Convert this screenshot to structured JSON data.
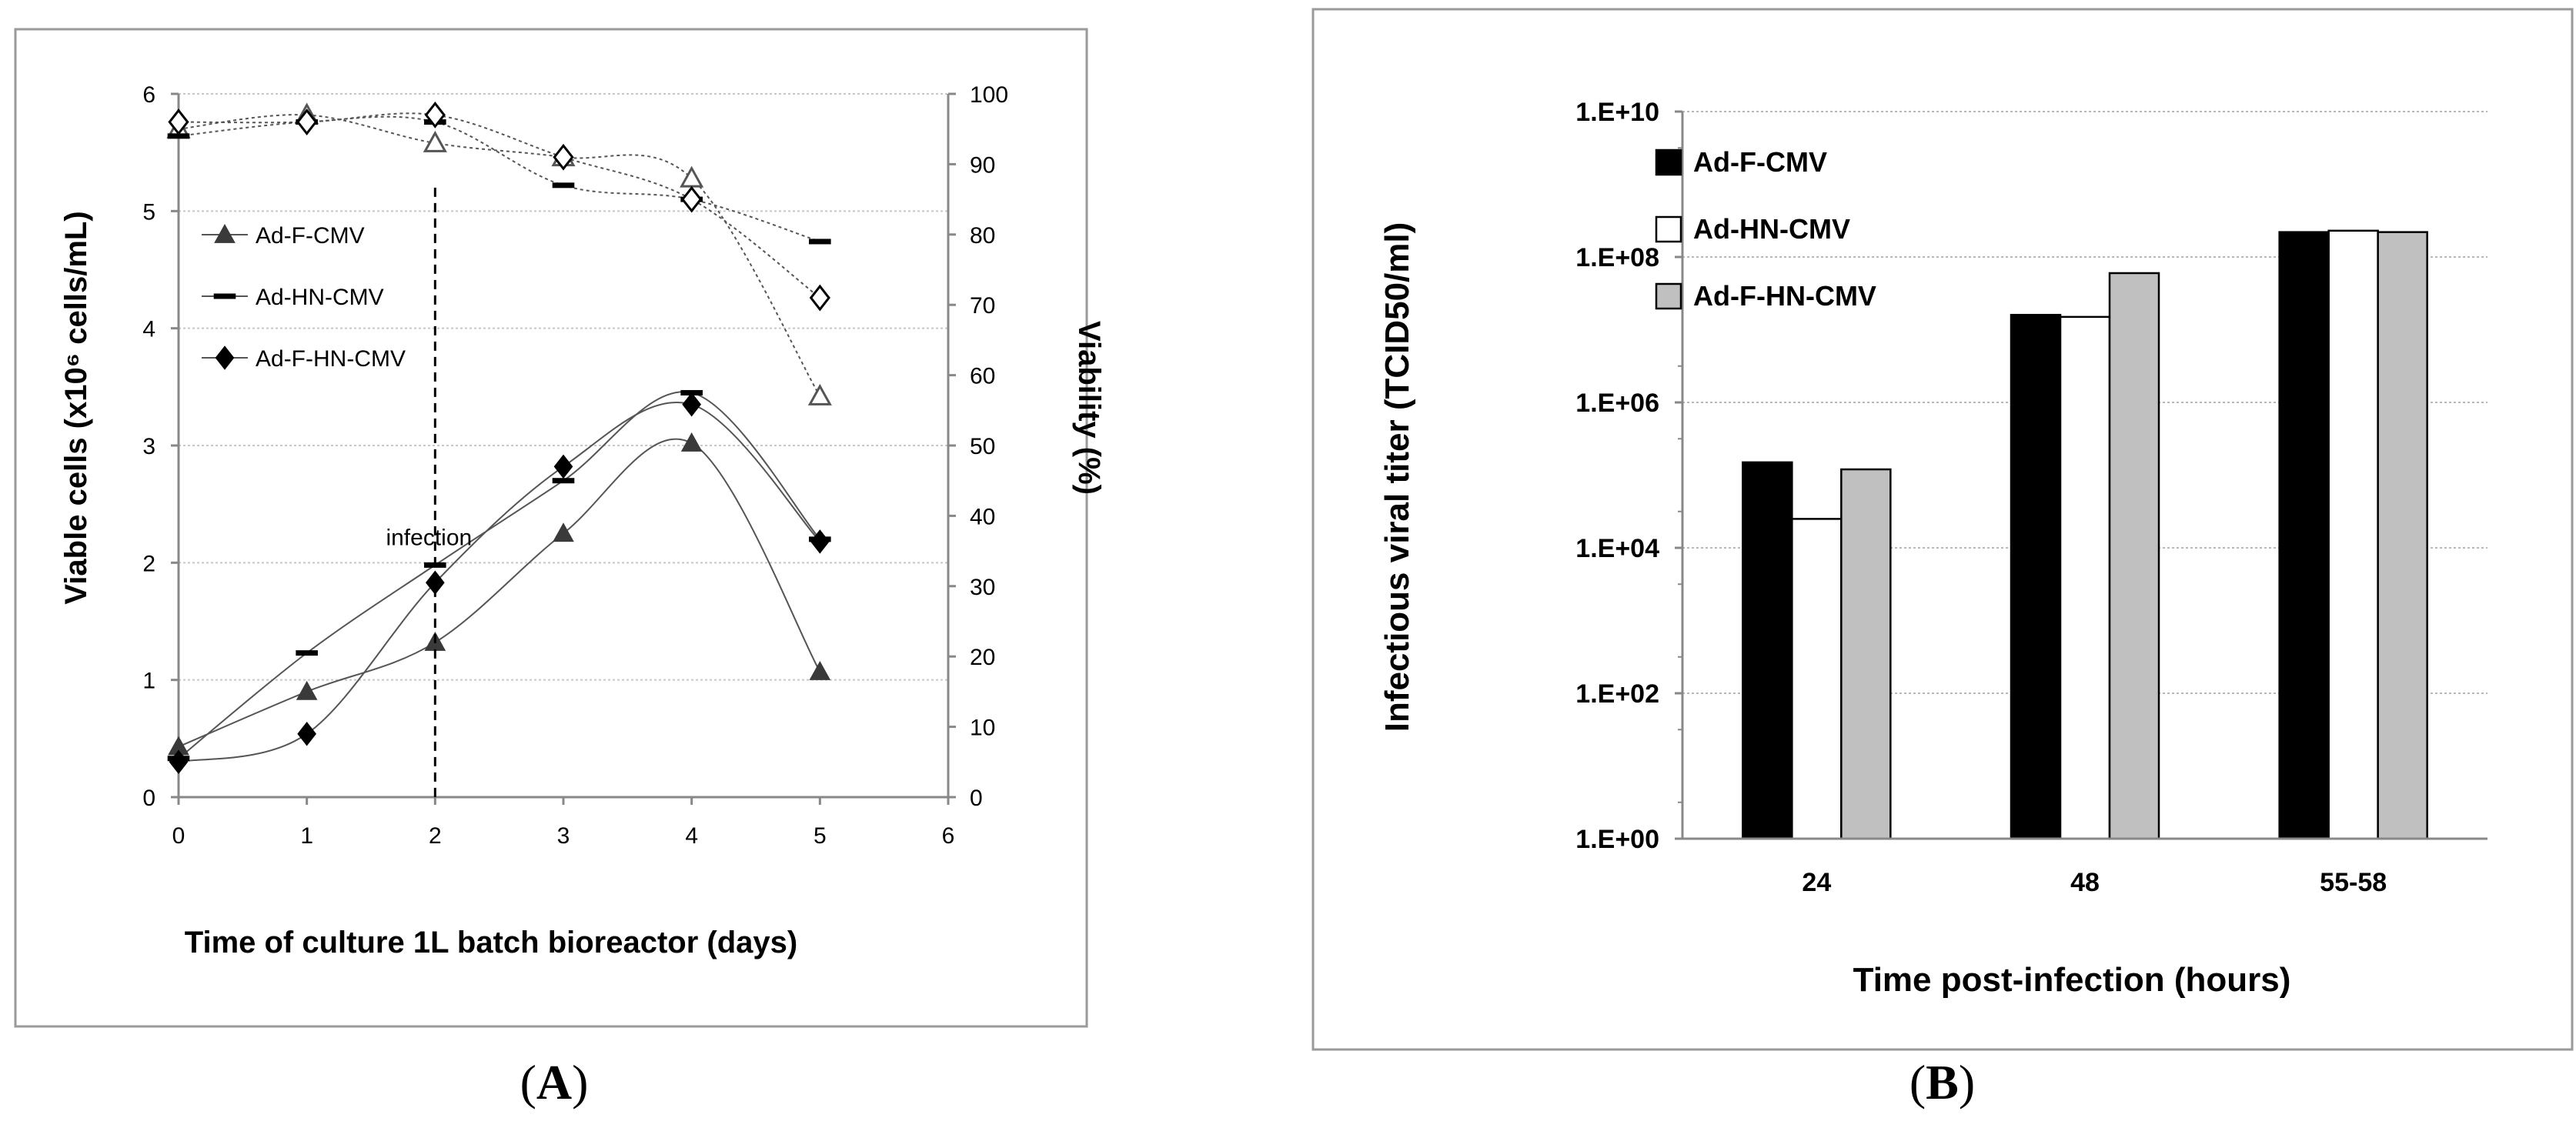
{
  "panels": {
    "a_label_open": "(",
    "a_label_letter": "A",
    "a_label_close": ")",
    "b_label_open": "(",
    "b_label_letter": "B",
    "b_label_close": ")"
  },
  "chart_data": [
    {
      "id": "A",
      "type": "line",
      "title": "",
      "xlabel": "Time of culture 1L batch bioreactor (days)",
      "ylabel": "Viable cells (x10⁶ cells/mL)",
      "y2label": "Viability (%)",
      "xlim": [
        0,
        6
      ],
      "ylim": [
        0,
        6
      ],
      "y2lim": [
        0,
        100
      ],
      "xticks": [
        "0",
        "1",
        "2",
        "3",
        "4",
        "5",
        "6"
      ],
      "yticks": [
        "0",
        "1",
        "2",
        "3",
        "4",
        "5",
        "6"
      ],
      "y2ticks": [
        "0",
        "10",
        "20",
        "30",
        "40",
        "50",
        "60",
        "70",
        "80",
        "90",
        "100"
      ],
      "annotation": {
        "text": "infection",
        "x": 2
      },
      "legend": {
        "position": "left",
        "entries": [
          "Ad-F-CMV",
          "Ad-HN-CMV",
          "Ad-F-HN-CMV"
        ]
      },
      "series": [
        {
          "name": "Ad-F-CMV",
          "marker": "triangle",
          "axis": "left",
          "metric": "viable cells",
          "x": [
            0,
            1,
            2,
            3,
            4,
            5
          ],
          "values": [
            0.43,
            0.9,
            1.32,
            2.25,
            3.02,
            1.07
          ]
        },
        {
          "name": "Ad-HN-CMV",
          "marker": "dash",
          "axis": "left",
          "metric": "viable cells",
          "x": [
            0,
            1,
            2,
            3,
            4,
            5
          ],
          "values": [
            0.33,
            1.23,
            1.98,
            2.7,
            3.45,
            2.2
          ]
        },
        {
          "name": "Ad-F-HN-CMV",
          "marker": "diamond",
          "axis": "left",
          "metric": "viable cells",
          "x": [
            0,
            1,
            2,
            3,
            4,
            5
          ],
          "values": [
            0.3,
            0.54,
            1.83,
            2.82,
            3.35,
            2.18
          ]
        },
        {
          "name": "Ad-F-CMV",
          "marker": "triangle-open",
          "axis": "right",
          "metric": "viability",
          "x": [
            0,
            1,
            2,
            3,
            4,
            5
          ],
          "values": [
            95,
            97,
            93,
            91,
            88,
            57
          ]
        },
        {
          "name": "Ad-HN-CMV",
          "marker": "dash",
          "axis": "right",
          "metric": "viability",
          "x": [
            0,
            1,
            2,
            3,
            4,
            5
          ],
          "values": [
            94,
            96,
            96,
            87,
            85,
            79
          ]
        },
        {
          "name": "Ad-F-HN-CMV",
          "marker": "diamond-open",
          "axis": "right",
          "metric": "viability",
          "x": [
            0,
            1,
            2,
            3,
            4,
            5
          ],
          "values": [
            96,
            96,
            97,
            91,
            85,
            71
          ]
        }
      ]
    },
    {
      "id": "B",
      "type": "bar",
      "scale": "log",
      "title": "",
      "xlabel": "Time post-infection (hours)",
      "ylabel": "Infectious viral titer (TCID50/ml)",
      "categories": [
        "24",
        "48",
        "55-58"
      ],
      "ylim": [
        1,
        10000000000
      ],
      "yticks": [
        "1.E+00",
        "1.E+02",
        "1.E+04",
        "1.E+06",
        "1.E+08",
        "1.E+10"
      ],
      "legend": {
        "position": "top-left",
        "entries": [
          "Ad-F-CMV",
          "Ad-HN-CMV",
          "Ad-F-HN-CMV"
        ]
      },
      "series": [
        {
          "name": "Ad-F-CMV",
          "color": "#000000",
          "values": [
            150000,
            16000000,
            220000000
          ]
        },
        {
          "name": "Ad-HN-CMV",
          "color": "#ffffff",
          "values": [
            25000,
            15000000,
            230000000
          ]
        },
        {
          "name": "Ad-F-HN-CMV",
          "color": "#c0c0c0",
          "values": [
            120000,
            60000000,
            220000000
          ]
        }
      ]
    }
  ]
}
